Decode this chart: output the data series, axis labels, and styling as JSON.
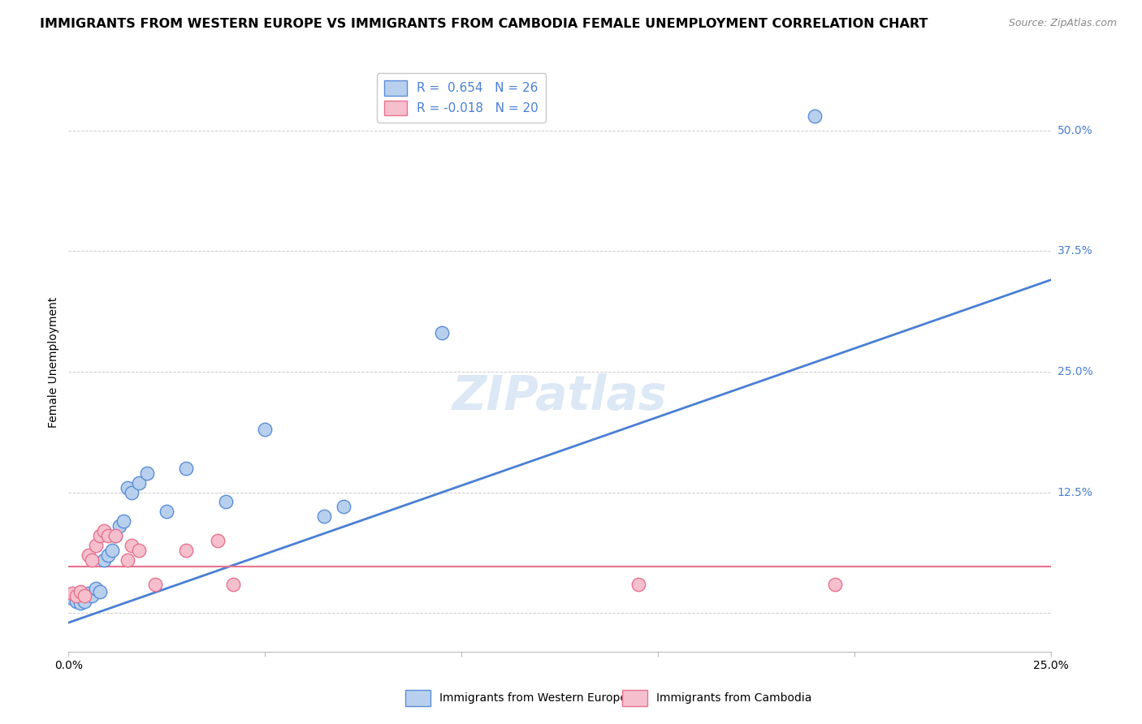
{
  "title": "IMMIGRANTS FROM WESTERN EUROPE VS IMMIGRANTS FROM CAMBODIA FEMALE UNEMPLOYMENT CORRELATION CHART",
  "source": "Source: ZipAtlas.com",
  "ylabel": "Female Unemployment",
  "watermark": "ZIPatlas",
  "xlim": [
    0.0,
    0.25
  ],
  "ylim": [
    -0.04,
    0.56
  ],
  "blue_scatter": [
    [
      0.001,
      0.015
    ],
    [
      0.002,
      0.012
    ],
    [
      0.003,
      0.01
    ],
    [
      0.004,
      0.012
    ],
    [
      0.005,
      0.02
    ],
    [
      0.006,
      0.018
    ],
    [
      0.007,
      0.025
    ],
    [
      0.008,
      0.022
    ],
    [
      0.009,
      0.055
    ],
    [
      0.01,
      0.06
    ],
    [
      0.011,
      0.065
    ],
    [
      0.012,
      0.08
    ],
    [
      0.013,
      0.09
    ],
    [
      0.014,
      0.095
    ],
    [
      0.015,
      0.13
    ],
    [
      0.016,
      0.125
    ],
    [
      0.018,
      0.135
    ],
    [
      0.02,
      0.145
    ],
    [
      0.025,
      0.105
    ],
    [
      0.03,
      0.15
    ],
    [
      0.04,
      0.115
    ],
    [
      0.05,
      0.19
    ],
    [
      0.065,
      0.1
    ],
    [
      0.07,
      0.11
    ],
    [
      0.095,
      0.29
    ],
    [
      0.19,
      0.515
    ]
  ],
  "pink_scatter": [
    [
      0.001,
      0.02
    ],
    [
      0.002,
      0.018
    ],
    [
      0.003,
      0.022
    ],
    [
      0.004,
      0.018
    ],
    [
      0.005,
      0.06
    ],
    [
      0.006,
      0.055
    ],
    [
      0.007,
      0.07
    ],
    [
      0.008,
      0.08
    ],
    [
      0.009,
      0.085
    ],
    [
      0.01,
      0.08
    ],
    [
      0.012,
      0.08
    ],
    [
      0.015,
      0.055
    ],
    [
      0.016,
      0.07
    ],
    [
      0.018,
      0.065
    ],
    [
      0.022,
      0.03
    ],
    [
      0.03,
      0.065
    ],
    [
      0.038,
      0.075
    ],
    [
      0.042,
      0.03
    ],
    [
      0.145,
      0.03
    ],
    [
      0.195,
      0.03
    ]
  ],
  "blue_line": [
    0.0,
    -0.01,
    0.25,
    0.345
  ],
  "pink_line": [
    0.0,
    0.048,
    0.25,
    0.048
  ],
  "blue_R": 0.654,
  "blue_N": 26,
  "pink_R": -0.018,
  "pink_N": 20,
  "blue_color": "#b8d0ed",
  "pink_color": "#f5bfce",
  "blue_edge_color": "#5b8dd9",
  "pink_edge_color": "#e8728e",
  "blue_line_color": "#4a7fd4",
  "pink_line_color": "#e8728e",
  "title_fontsize": 11.5,
  "axis_label_fontsize": 10,
  "tick_fontsize": 10,
  "legend_fontsize": 11,
  "watermark_fontsize": 42,
  "watermark_color": "#dce8f5",
  "background_color": "#ffffff",
  "grid_color": "#cccccc",
  "right_label_color": "#4a7fd4"
}
